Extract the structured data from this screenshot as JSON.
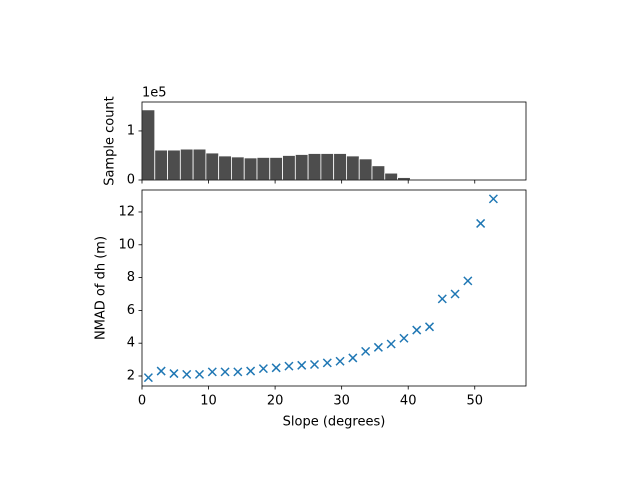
{
  "chart_data": [
    {
      "type": "histogram",
      "ylabel": "Sample count",
      "offset_text": "1e5",
      "color": "#4d4d4d",
      "bins": [
        0,
        1.92,
        3.84,
        5.76,
        7.68,
        9.6,
        11.52,
        13.44,
        15.36,
        17.28,
        19.2,
        21.12,
        23.04,
        24.96,
        26.88,
        28.8,
        30.72,
        32.64,
        34.56,
        36.48,
        38.4,
        40.32,
        42.24,
        44.16,
        46.08,
        48,
        49.92,
        51.84,
        53.76
      ],
      "values": [
        143000,
        61000,
        61000,
        63000,
        63000,
        55000,
        49000,
        47000,
        45000,
        46000,
        46000,
        50000,
        52000,
        54000,
        54000,
        54000,
        49000,
        43000,
        29000,
        14000,
        5000,
        1000,
        300,
        100,
        50,
        30,
        10,
        5
      ],
      "xlim": [
        0,
        57.7
      ],
      "ylim": [
        0,
        159000
      ],
      "yticks": [
        0,
        {
          "value": 100000,
          "label": "1"
        }
      ]
    },
    {
      "type": "scatter",
      "xlabel": "Slope (degrees)",
      "ylabel": "NMAD of dh (m)",
      "color": "#1f77b4",
      "marker": "x",
      "x": [
        0.96,
        2.88,
        4.8,
        6.72,
        8.64,
        10.56,
        12.48,
        14.4,
        16.32,
        18.24,
        20.16,
        22.08,
        24,
        25.92,
        27.84,
        29.76,
        31.68,
        33.6,
        35.52,
        37.44,
        39.36,
        41.28,
        43.2,
        45.12,
        47.04,
        48.96,
        50.88,
        52.8
      ],
      "values": [
        1.9,
        2.3,
        2.15,
        2.1,
        2.1,
        2.25,
        2.25,
        2.25,
        2.3,
        2.45,
        2.5,
        2.6,
        2.65,
        2.7,
        2.8,
        2.9,
        3.1,
        3.5,
        3.75,
        3.95,
        4.3,
        4.8,
        5.0,
        6.7,
        7.0,
        7.8,
        11.3,
        12.8
      ],
      "xlim": [
        0,
        57.7
      ],
      "ylim": [
        1.39,
        13.34
      ],
      "xticks": [
        0,
        10,
        20,
        30,
        40,
        50
      ],
      "yticks": [
        2,
        4,
        6,
        8,
        10,
        12
      ]
    }
  ]
}
